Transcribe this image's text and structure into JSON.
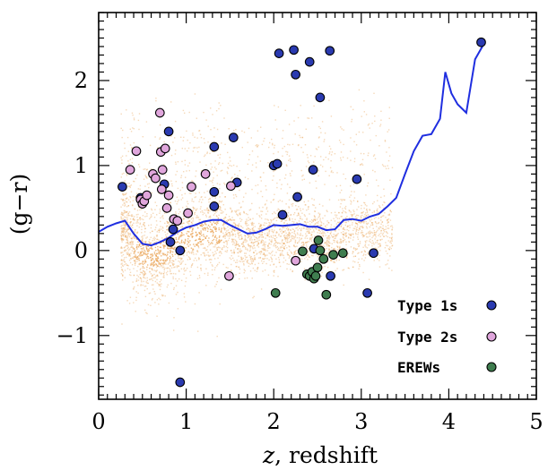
{
  "chart_data": {
    "type": "scatter",
    "title": "",
    "xlabel": "z, redshift",
    "xlabel_italic": "z",
    "xlabel_rest": ", redshift",
    "ylabel": "(g−r)",
    "xlim": [
      0,
      5
    ],
    "ylim": [
      -1.75,
      2.8
    ],
    "x_ticks": [
      {
        "v": 0,
        "label": "0"
      },
      {
        "v": 1,
        "label": "1"
      },
      {
        "v": 2,
        "label": "2"
      },
      {
        "v": 3,
        "label": "3"
      },
      {
        "v": 4,
        "label": "4"
      },
      {
        "v": 5,
        "label": "5"
      }
    ],
    "y_ticks": [
      {
        "v": -1,
        "label": "−1"
      },
      {
        "v": 0,
        "label": "0"
      },
      {
        "v": 1,
        "label": "1"
      },
      {
        "v": 2,
        "label": "2"
      }
    ],
    "legend_position": "bottom-right",
    "colors": {
      "type1": "#2a3ab0",
      "type2": "#e0a6dc",
      "erew": "#3f7d4f",
      "track": "#1f2ee0",
      "background_cloud": "#e8a050"
    },
    "series": [
      {
        "name": "Type 1s",
        "key": "type1",
        "points": [
          [
            0.27,
            0.75
          ],
          [
            0.48,
            0.62
          ],
          [
            0.75,
            0.78
          ],
          [
            0.8,
            1.4
          ],
          [
            0.82,
            0.1
          ],
          [
            0.85,
            0.25
          ],
          [
            0.93,
            0.0
          ],
          [
            0.93,
            -1.55
          ],
          [
            1.32,
            1.22
          ],
          [
            1.32,
            0.69
          ],
          [
            1.32,
            0.52
          ],
          [
            1.54,
            1.33
          ],
          [
            1.58,
            0.8
          ],
          [
            2.0,
            1.0
          ],
          [
            2.04,
            1.02
          ],
          [
            2.06,
            2.32
          ],
          [
            2.1,
            0.42
          ],
          [
            2.23,
            2.36
          ],
          [
            2.25,
            2.07
          ],
          [
            2.27,
            0.63
          ],
          [
            2.41,
            2.22
          ],
          [
            2.45,
            0.95
          ],
          [
            2.46,
            0.02
          ],
          [
            2.53,
            1.8
          ],
          [
            2.64,
            2.35
          ],
          [
            2.65,
            -0.3
          ],
          [
            2.95,
            0.84
          ],
          [
            3.07,
            -0.5
          ],
          [
            3.14,
            -0.03
          ],
          [
            4.37,
            2.45
          ]
        ]
      },
      {
        "name": "Type 2s",
        "key": "type2",
        "points": [
          [
            0.36,
            0.95
          ],
          [
            0.43,
            1.17
          ],
          [
            0.48,
            0.6
          ],
          [
            0.5,
            0.55
          ],
          [
            0.52,
            0.58
          ],
          [
            0.55,
            0.65
          ],
          [
            0.62,
            0.9
          ],
          [
            0.65,
            0.85
          ],
          [
            0.7,
            1.62
          ],
          [
            0.71,
            1.16
          ],
          [
            0.72,
            0.72
          ],
          [
            0.73,
            0.95
          ],
          [
            0.76,
            1.2
          ],
          [
            0.78,
            0.5
          ],
          [
            0.8,
            0.65
          ],
          [
            0.86,
            0.37
          ],
          [
            0.9,
            0.35
          ],
          [
            1.02,
            0.44
          ],
          [
            1.06,
            0.75
          ],
          [
            1.22,
            0.9
          ],
          [
            1.49,
            -0.3
          ],
          [
            1.51,
            0.76
          ],
          [
            2.25,
            -0.12
          ]
        ]
      },
      {
        "name": "EREWs",
        "key": "erew",
        "points": [
          [
            2.02,
            -0.5
          ],
          [
            2.33,
            -0.01
          ],
          [
            2.38,
            -0.28
          ],
          [
            2.41,
            -0.3
          ],
          [
            2.44,
            -0.25
          ],
          [
            2.46,
            -0.33
          ],
          [
            2.48,
            -0.3
          ],
          [
            2.5,
            -0.2
          ],
          [
            2.51,
            0.12
          ],
          [
            2.53,
            0.0
          ],
          [
            2.57,
            -0.1
          ],
          [
            2.6,
            -0.52
          ],
          [
            2.68,
            -0.05
          ],
          [
            2.79,
            -0.03
          ]
        ]
      }
    ],
    "track": {
      "points": [
        [
          0.0,
          0.22
        ],
        [
          0.1,
          0.28
        ],
        [
          0.2,
          0.32
        ],
        [
          0.3,
          0.35
        ],
        [
          0.4,
          0.2
        ],
        [
          0.5,
          0.08
        ],
        [
          0.6,
          0.06
        ],
        [
          0.7,
          0.1
        ],
        [
          0.8,
          0.15
        ],
        [
          0.9,
          0.22
        ],
        [
          1.0,
          0.27
        ],
        [
          1.1,
          0.3
        ],
        [
          1.2,
          0.34
        ],
        [
          1.3,
          0.36
        ],
        [
          1.4,
          0.36
        ],
        [
          1.5,
          0.3
        ],
        [
          1.6,
          0.25
        ],
        [
          1.7,
          0.2
        ],
        [
          1.8,
          0.21
        ],
        [
          1.9,
          0.25
        ],
        [
          2.0,
          0.3
        ],
        [
          2.1,
          0.29
        ],
        [
          2.2,
          0.3
        ],
        [
          2.3,
          0.31
        ],
        [
          2.4,
          0.28
        ],
        [
          2.5,
          0.28
        ],
        [
          2.6,
          0.24
        ],
        [
          2.7,
          0.25
        ],
        [
          2.8,
          0.36
        ],
        [
          2.9,
          0.37
        ],
        [
          3.0,
          0.35
        ],
        [
          3.1,
          0.4
        ],
        [
          3.2,
          0.43
        ],
        [
          3.3,
          0.52
        ],
        [
          3.4,
          0.62
        ],
        [
          3.5,
          0.9
        ],
        [
          3.6,
          1.17
        ],
        [
          3.7,
          1.35
        ],
        [
          3.8,
          1.37
        ],
        [
          3.9,
          1.55
        ],
        [
          3.96,
          2.1
        ],
        [
          4.03,
          1.85
        ],
        [
          4.1,
          1.72
        ],
        [
          4.2,
          1.62
        ],
        [
          4.3,
          2.25
        ],
        [
          4.4,
          2.43
        ]
      ]
    }
  }
}
